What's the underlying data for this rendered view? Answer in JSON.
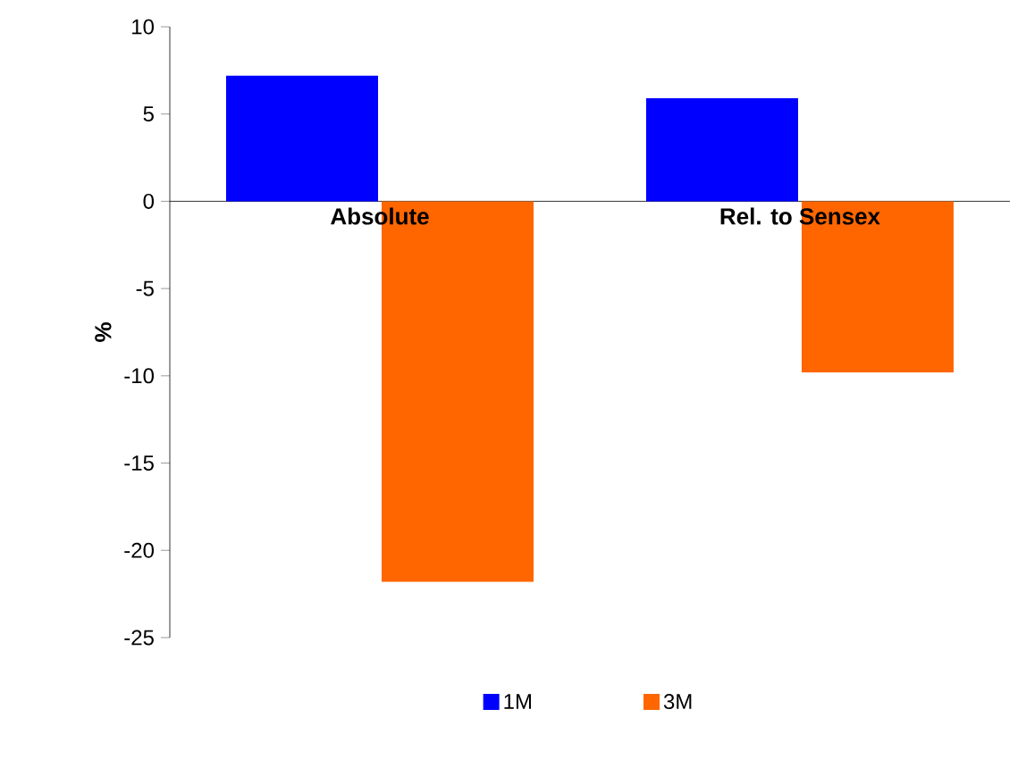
{
  "chart_data": {
    "type": "bar",
    "categories": [
      "Absolute",
      "Rel. to Sensex"
    ],
    "ylabel": "%",
    "series": [
      {
        "name": "1M",
        "color": "#0000ff",
        "values": [
          7.2,
          5.9
        ]
      },
      {
        "name": "3M",
        "color": "#ff6600",
        "values": [
          -21.8,
          -9.8
        ]
      }
    ],
    "ylim": [
      -25,
      10
    ],
    "yticks": [
      -25,
      -20,
      -15,
      -10,
      -5,
      0,
      5,
      10
    ],
    "grid": false,
    "legend": "bottom"
  }
}
